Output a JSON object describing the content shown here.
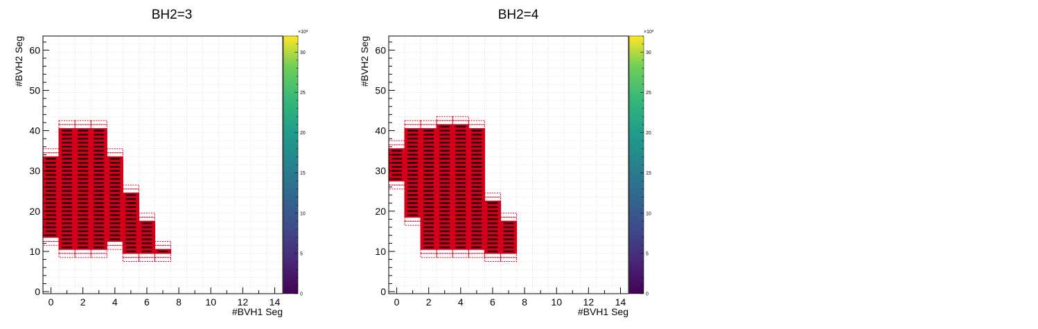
{
  "chart_data": [
    {
      "type": "heatmap",
      "title": "BH2=3",
      "xlabel": "#BVH1 Seg",
      "ylabel": "#BVH2 Seg",
      "xlim": [
        -0.5,
        14.5
      ],
      "ylim": [
        -0.5,
        63.5
      ],
      "x_ticks": [
        0,
        2,
        4,
        6,
        8,
        10,
        12,
        14
      ],
      "y_ticks": [
        0,
        10,
        20,
        30,
        40,
        50,
        60
      ],
      "colorbar": {
        "min": 0,
        "max": 32,
        "ticks": [
          0,
          5,
          10,
          15,
          20,
          25,
          30
        ],
        "exponent_label": "×10³",
        "palette": "viridis"
      },
      "grid": true,
      "highlight_color": "#d4001a",
      "columns": [
        {
          "x": 0,
          "y_range": [
            12,
            35
          ]
        },
        {
          "x": 1,
          "y_range": [
            9,
            42
          ]
        },
        {
          "x": 2,
          "y_range": [
            9,
            42
          ]
        },
        {
          "x": 3,
          "y_range": [
            9,
            42
          ]
        },
        {
          "x": 4,
          "y_range": [
            11,
            35
          ]
        },
        {
          "x": 5,
          "y_range": [
            8,
            26
          ]
        },
        {
          "x": 6,
          "y_range": [
            8,
            19
          ]
        },
        {
          "x": 7,
          "y_range": [
            8,
            12
          ]
        }
      ]
    },
    {
      "type": "heatmap",
      "title": "BH2=4",
      "xlabel": "#BVH1 Seg",
      "ylabel": "#BVH2 Seg",
      "xlim": [
        -0.5,
        14.5
      ],
      "ylim": [
        -0.5,
        63.5
      ],
      "x_ticks": [
        0,
        2,
        4,
        6,
        8,
        10,
        12,
        14
      ],
      "y_ticks": [
        0,
        10,
        20,
        30,
        40,
        50,
        60
      ],
      "colorbar": {
        "min": 0,
        "max": 32,
        "ticks": [
          0,
          5,
          10,
          15,
          20,
          25,
          30
        ],
        "exponent_label": "×10³",
        "palette": "viridis"
      },
      "grid": true,
      "highlight_color": "#d4001a",
      "columns": [
        {
          "x": 0,
          "y_range": [
            26,
            37
          ]
        },
        {
          "x": 1,
          "y_range": [
            17,
            42
          ]
        },
        {
          "x": 2,
          "y_range": [
            9,
            42
          ]
        },
        {
          "x": 3,
          "y_range": [
            9,
            43
          ]
        },
        {
          "x": 4,
          "y_range": [
            9,
            43
          ]
        },
        {
          "x": 5,
          "y_range": [
            9,
            42
          ]
        },
        {
          "x": 6,
          "y_range": [
            8,
            24
          ]
        },
        {
          "x": 7,
          "y_range": [
            8,
            19
          ]
        }
      ]
    }
  ]
}
